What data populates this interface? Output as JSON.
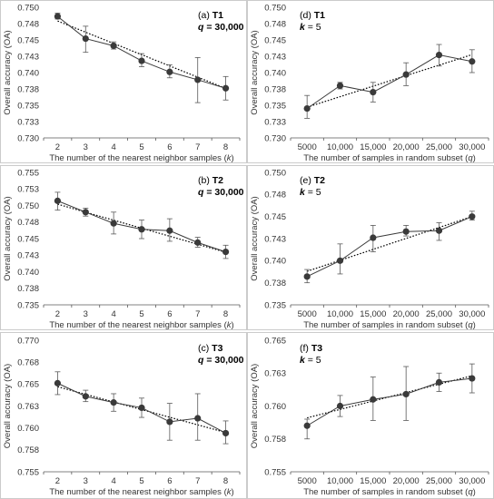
{
  "chart_data": [
    {
      "type": "line",
      "panel": "a",
      "tag": "(a)",
      "tag_name": "T1",
      "param_var": "q",
      "param_rest": " = 30,000",
      "xlabel_pre": "The number of the nearest neighbor samples (",
      "xlabel_var": "k",
      "xlabel_post": ")",
      "ylabel": "Overall accuracy (OA)",
      "x_ticks": [
        "2",
        "3",
        "4",
        "5",
        "6",
        "7",
        "8"
      ],
      "y_ticks": [
        "0.730",
        "0.733",
        "0.735",
        "0.738",
        "0.740",
        "0.743",
        "0.745",
        "0.748",
        "0.750"
      ],
      "ylim": [
        0.73,
        0.75
      ],
      "values": [
        0.7486,
        0.7452,
        0.7441,
        0.7418,
        0.7401,
        0.7389,
        0.7376
      ],
      "err_low": [
        0.7482,
        0.7431,
        0.7436,
        0.7409,
        0.7392,
        0.7354,
        0.7358
      ],
      "err_high": [
        0.7491,
        0.7471,
        0.7447,
        0.7429,
        0.7412,
        0.7423,
        0.7394
      ],
      "trend": [
        0.7479,
        0.7502
      ],
      "trend_slope": -0.00172,
      "grid": false,
      "legend": "none"
    },
    {
      "type": "line",
      "panel": "b",
      "tag": "(b)",
      "tag_name": "T2",
      "param_var": "q",
      "param_rest": " = 30,000",
      "xlabel_pre": "The number of the nearest neighbor samples (",
      "xlabel_var": "k",
      "xlabel_post": ")",
      "ylabel": "Overall accuracy (OA)",
      "x_ticks": [
        "2",
        "3",
        "4",
        "5",
        "6",
        "7",
        "8"
      ],
      "y_ticks": [
        "0.735",
        "0.738",
        "0.740",
        "0.743",
        "0.745",
        "0.748",
        "0.750",
        "0.753",
        "0.755"
      ],
      "ylim": [
        0.735,
        0.755
      ],
      "values": [
        0.7507,
        0.749,
        0.7473,
        0.7464,
        0.7462,
        0.7444,
        0.743
      ],
      "err_low": [
        0.7493,
        0.7484,
        0.7457,
        0.745,
        0.7446,
        0.7437,
        0.742
      ],
      "err_high": [
        0.752,
        0.7496,
        0.749,
        0.7478,
        0.748,
        0.7452,
        0.744
      ],
      "trend": [
        0.7502,
        0.7513
      ],
      "trend_slope": -0.00121,
      "grid": false,
      "legend": "none"
    },
    {
      "type": "line",
      "panel": "c",
      "tag": "(c)",
      "tag_name": "T3",
      "param_var": "q",
      "param_rest": " = 30,000",
      "xlabel_pre": "The number of the nearest neighbor samples (",
      "xlabel_var": "k",
      "xlabel_post": ")",
      "ylabel": "Overall accuracy (OA)",
      "x_ticks": [
        "2",
        "3",
        "4",
        "5",
        "6",
        "7",
        "8"
      ],
      "y_ticks": [
        "0.755",
        "0.758",
        "0.760",
        "0.763",
        "0.765",
        "0.768",
        "0.770"
      ],
      "ylim": [
        0.755,
        0.77
      ],
      "values": [
        0.7651,
        0.7636,
        0.7629,
        0.7623,
        0.7607,
        0.7611,
        0.7594
      ],
      "err_low": [
        0.7638,
        0.763,
        0.7619,
        0.7612,
        0.7586,
        0.7586,
        0.7582
      ],
      "err_high": [
        0.7664,
        0.7643,
        0.7639,
        0.7634,
        0.7628,
        0.7639,
        0.7608
      ],
      "trend": [
        0.7647,
        0.7662
      ],
      "trend_slope": -0.00087,
      "grid": false,
      "legend": "none"
    },
    {
      "type": "line",
      "panel": "d",
      "tag": "(d)",
      "tag_name": "T1",
      "param_var": "k",
      "param_rest": " = 5",
      "xlabel_pre": "The number of samples in random subset (",
      "xlabel_var": "q",
      "xlabel_post": ")",
      "ylabel": "Overall accuracy (OA)",
      "x_ticks": [
        "5000",
        "10,000",
        "15,000",
        "20,000",
        "25,000",
        "30,000"
      ],
      "y_ticks": [
        "0.730",
        "0.733",
        "0.735",
        "0.738",
        "0.740",
        "0.743",
        "0.745",
        "0.748",
        "0.750"
      ],
      "ylim": [
        0.73,
        0.75
      ],
      "values": [
        0.7345,
        0.738,
        0.737,
        0.7397,
        0.7427,
        0.7417
      ],
      "err_low": [
        0.733,
        0.7375,
        0.7355,
        0.738,
        0.741,
        0.74
      ],
      "err_high": [
        0.7365,
        0.7385,
        0.7385,
        0.7415,
        0.7443,
        0.7435
      ],
      "trend": [
        0.7347,
        0.7351
      ],
      "trend_slope": 0.00161,
      "grid": false,
      "legend": "none"
    },
    {
      "type": "line",
      "panel": "e",
      "tag": "(e)",
      "tag_name": "T2",
      "param_var": "k",
      "param_rest": " = 5",
      "xlabel_pre": "The number of samples in random subset (",
      "xlabel_var": "q",
      "xlabel_post": ")",
      "ylabel": "Overall accuracy (OA)",
      "x_ticks": [
        "5000",
        "10,000",
        "15,000",
        "20,000",
        "25,000",
        "30,000"
      ],
      "y_ticks": [
        "0.735",
        "0.738",
        "0.740",
        "0.743",
        "0.745",
        "0.748",
        "0.750"
      ],
      "ylim": [
        0.735,
        0.75
      ],
      "values": [
        0.7382,
        0.74,
        0.7426,
        0.7433,
        0.7434,
        0.745
      ],
      "err_low": [
        0.7375,
        0.7385,
        0.741,
        0.7428,
        0.7423,
        0.7446
      ],
      "err_high": [
        0.739,
        0.7419,
        0.744,
        0.744,
        0.7443,
        0.7456
      ],
      "trend": [
        0.7388,
        0.7387
      ],
      "trend_slope": 0.00124,
      "grid": false,
      "legend": "none"
    },
    {
      "type": "line",
      "panel": "f",
      "tag": "(f)",
      "tag_name": "T3",
      "param_var": "k",
      "param_rest": " = 5",
      "xlabel_pre": "The number of samples in random subset (",
      "xlabel_var": "q",
      "xlabel_post": ")",
      "ylabel": "Overall accuracy (OA)",
      "x_ticks": [
        "5000",
        "10,000",
        "15,000",
        "20,000",
        "25,000",
        "30,000"
      ],
      "y_ticks": [
        "0.755",
        "0.758",
        "0.760",
        "0.763",
        "0.765"
      ],
      "ylim": [
        0.755,
        0.765
      ],
      "values": [
        0.7585,
        0.76,
        0.7605,
        0.7609,
        0.7618,
        0.7621
      ],
      "err_low": [
        0.7575,
        0.7592,
        0.7589,
        0.7589,
        0.7611,
        0.761
      ],
      "err_high": [
        0.759,
        0.7608,
        0.7622,
        0.763,
        0.7625,
        0.7632
      ],
      "trend": [
        0.7591,
        0.7593
      ],
      "trend_slope": 0.00064,
      "grid": false,
      "legend": "none"
    }
  ]
}
